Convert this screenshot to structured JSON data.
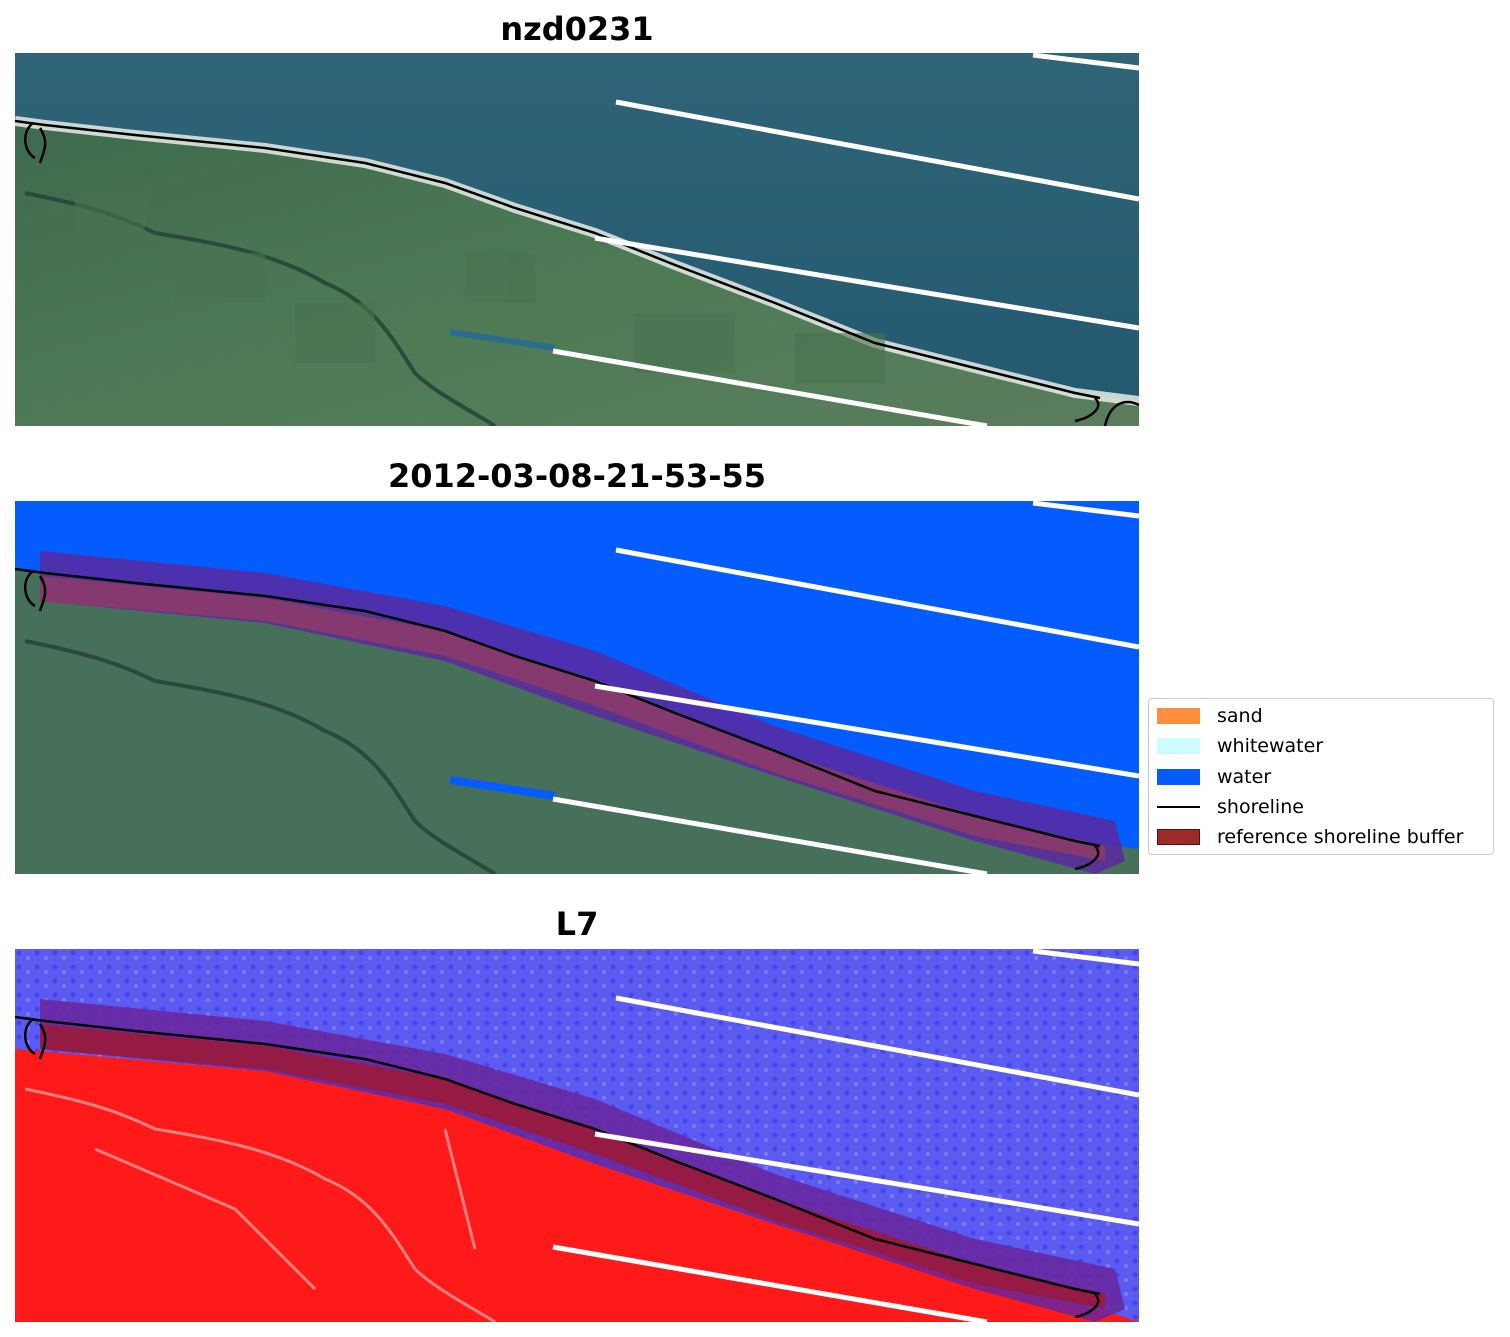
{
  "figure": {
    "panels": [
      {
        "title": "nzd0231"
      },
      {
        "title": "2012-03-08-21-53-55"
      },
      {
        "title": "L7"
      }
    ]
  },
  "legend": {
    "items": [
      {
        "label": "sand",
        "color": "#ff8f3f",
        "kind": "patch"
      },
      {
        "label": "whitewater",
        "color": "#ccfcff",
        "kind": "patch"
      },
      {
        "label": "water",
        "color": "#045cff",
        "kind": "patch"
      },
      {
        "label": "shoreline",
        "color": "#000000",
        "kind": "line"
      },
      {
        "label": "reference shoreline buffer",
        "color": "#9b2a2a",
        "kind": "patch"
      }
    ]
  }
}
